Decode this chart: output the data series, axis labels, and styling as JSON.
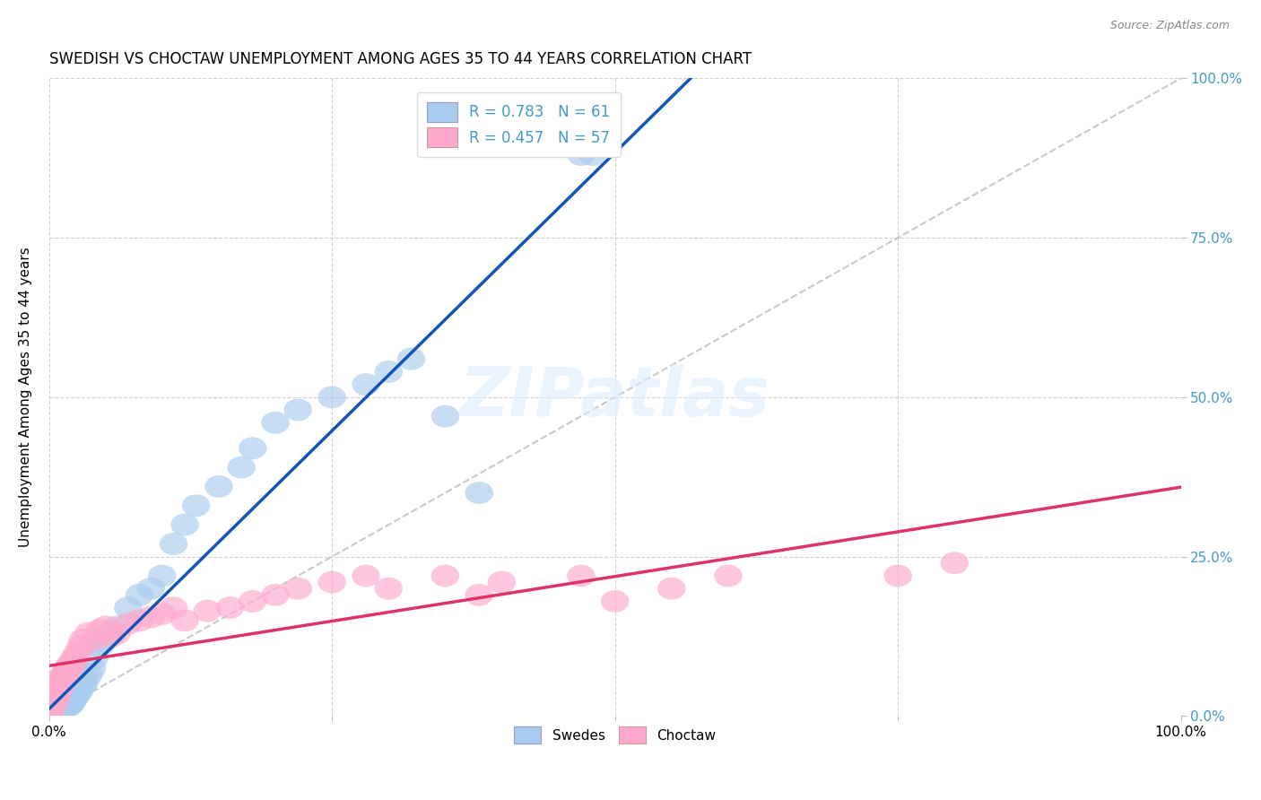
{
  "title": "SWEDISH VS CHOCTAW UNEMPLOYMENT AMONG AGES 35 TO 44 YEARS CORRELATION CHART",
  "source": "Source: ZipAtlas.com",
  "ylabel": "Unemployment Among Ages 35 to 44 years",
  "legend_label1": "R = 0.783   N = 61",
  "legend_label2": "R = 0.457   N = 57",
  "legend_series1": "Swedes",
  "legend_series2": "Choctaw",
  "blue_scatter_color": "#aaccee",
  "pink_scatter_color": "#ffaacc",
  "blue_line_color": "#1155bb",
  "pink_line_color": "#dd3366",
  "right_axis_color": "#4499cc",
  "watermark_color": "#ddeeff",
  "xlim": [
    0,
    100
  ],
  "ylim": [
    0,
    100
  ],
  "bg_color": "#ffffff",
  "grid_color": "#cccccc",
  "xticks": [
    0,
    25,
    50,
    75,
    100
  ],
  "yticks": [
    0,
    25,
    50,
    75,
    100
  ],
  "xticklabels": [
    "0.0%",
    "",
    "",
    "",
    "100.0%"
  ],
  "yticklabels_right": [
    "0.0%",
    "25.0%",
    "50.0%",
    "75.0%",
    "100.0%"
  ],
  "swedes_x": [
    0.2,
    0.3,
    0.4,
    0.5,
    0.6,
    0.7,
    0.8,
    0.9,
    1.0,
    1.1,
    1.2,
    1.3,
    1.4,
    1.5,
    1.6,
    1.7,
    1.8,
    1.9,
    2.0,
    2.1,
    2.2,
    2.3,
    2.5,
    2.7,
    3.0,
    3.2,
    3.5,
    3.8,
    4.0,
    4.5,
    5.0,
    5.5,
    6.0,
    7.0,
    8.0,
    9.0,
    10.0,
    11.0,
    12.0,
    13.0,
    15.0,
    17.0,
    18.0,
    20.0,
    22.0,
    25.0,
    28.0,
    30.0,
    32.0,
    35.0,
    38.0,
    47.0,
    48.0,
    0.15,
    0.25,
    0.35,
    0.45,
    0.55,
    0.65,
    0.75,
    0.85
  ],
  "swedes_y": [
    0.3,
    0.4,
    0.5,
    0.8,
    0.6,
    0.7,
    1.0,
    0.9,
    1.2,
    1.1,
    1.5,
    1.3,
    1.4,
    1.8,
    1.6,
    1.5,
    2.0,
    1.9,
    2.2,
    2.5,
    2.8,
    3.0,
    3.5,
    4.0,
    5.0,
    5.5,
    6.5,
    7.5,
    9.0,
    11.0,
    12.0,
    13.0,
    14.0,
    17.0,
    19.0,
    20.0,
    22.0,
    27.0,
    30.0,
    33.0,
    36.0,
    39.0,
    42.0,
    46.0,
    48.0,
    50.0,
    52.0,
    54.0,
    56.0,
    47.0,
    35.0,
    88.0,
    88.0,
    0.2,
    0.3,
    0.4,
    0.5,
    0.6,
    0.7,
    0.8,
    0.9
  ],
  "choctaw_x": [
    0.2,
    0.3,
    0.4,
    0.5,
    0.6,
    0.7,
    0.8,
    0.9,
    1.0,
    1.1,
    1.2,
    1.3,
    1.5,
    1.7,
    2.0,
    2.2,
    2.5,
    2.8,
    3.0,
    3.5,
    4.0,
    4.5,
    5.0,
    5.5,
    6.0,
    7.0,
    8.0,
    9.0,
    10.0,
    11.0,
    12.0,
    14.0,
    16.0,
    18.0,
    20.0,
    22.0,
    25.0,
    28.0,
    30.0,
    35.0,
    38.0,
    40.0,
    47.0,
    50.0,
    55.0,
    60.0,
    75.0,
    80.0,
    0.15,
    0.25,
    0.35,
    0.45,
    0.55,
    1.4,
    1.6,
    1.8,
    2.3
  ],
  "choctaw_y": [
    1.5,
    2.0,
    2.5,
    3.0,
    3.5,
    3.0,
    4.0,
    4.5,
    5.0,
    5.5,
    6.0,
    6.5,
    7.0,
    7.5,
    8.0,
    9.0,
    10.0,
    11.0,
    12.0,
    13.0,
    12.0,
    13.5,
    14.0,
    12.5,
    13.0,
    14.5,
    15.0,
    15.5,
    16.0,
    17.0,
    15.0,
    16.5,
    17.0,
    18.0,
    19.0,
    20.0,
    21.0,
    22.0,
    20.0,
    22.0,
    19.0,
    21.0,
    22.0,
    18.0,
    20.0,
    22.0,
    22.0,
    24.0,
    1.0,
    1.5,
    2.0,
    2.5,
    3.0,
    6.0,
    7.0,
    8.0,
    9.0
  ]
}
